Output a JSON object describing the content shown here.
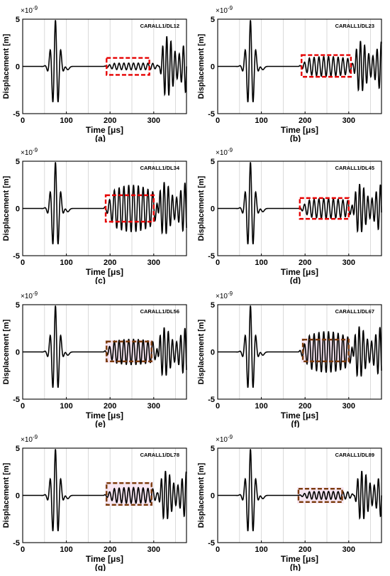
{
  "chart_data": [
    {
      "type": "line",
      "panel_label": "(a)",
      "annotation": "CARALL1/DL12",
      "xlabel": "Time [μs]",
      "ylabel": "Displacement [m]",
      "exponent_base": "×10",
      "exponent_power": "-9",
      "xlim": [
        0,
        375
      ],
      "ylim": [
        -5,
        5
      ],
      "xticks": [
        0,
        100,
        200,
        300
      ],
      "yticks": [
        -5,
        0,
        5
      ],
      "highlight": {
        "x": [
          192,
          290
        ],
        "y": [
          -0.9,
          0.9
        ],
        "style": "red"
      },
      "wave": {
        "burst1_amp": 4.9,
        "mid_amp": 0.3,
        "mid_growth": 0.2,
        "late_start": 318,
        "late_amp": 3.2
      }
    },
    {
      "type": "line",
      "panel_label": "(b)",
      "annotation": "CARALL1/DL23",
      "xlabel": "Time [μs]",
      "ylabel": "Displacement [m]",
      "exponent_base": "×10",
      "exponent_power": "-9",
      "xlim": [
        0,
        375
      ],
      "ylim": [
        -5,
        5
      ],
      "xticks": [
        0,
        100,
        200,
        300
      ],
      "yticks": [
        -5,
        0,
        5
      ],
      "highlight": {
        "x": [
          192,
          305
        ],
        "y": [
          -1.1,
          1.2
        ],
        "style": "red"
      },
      "wave": {
        "burst1_amp": 4.9,
        "mid_amp": 0.7,
        "mid_growth": 0.5,
        "late_start": 315,
        "late_amp": 2.7
      }
    },
    {
      "type": "line",
      "panel_label": "(c)",
      "annotation": "CARALL1/DL34",
      "xlabel": "Time [μs]",
      "ylabel": "Displacement [m]",
      "exponent_base": "×10",
      "exponent_power": "-9",
      "xlim": [
        0,
        375
      ],
      "ylim": [
        -5,
        5
      ],
      "xticks": [
        0,
        100,
        200,
        300
      ],
      "yticks": [
        -5,
        0,
        5
      ],
      "highlight": {
        "x": [
          190,
          300
        ],
        "y": [
          -1.4,
          1.4
        ],
        "style": "red"
      },
      "wave": {
        "burst1_amp": 4.9,
        "mid_amp": 1.3,
        "mid_growth": 0.9,
        "late_start": 312,
        "late_amp": 2.8
      }
    },
    {
      "type": "line",
      "panel_label": "(d)",
      "annotation": "CARALL1/DL45",
      "xlabel": "Time [μs]",
      "ylabel": "Displacement [m]",
      "exponent_base": "×10",
      "exponent_power": "-9",
      "xlim": [
        0,
        375
      ],
      "ylim": [
        -5,
        5
      ],
      "xticks": [
        0,
        100,
        200,
        300
      ],
      "yticks": [
        -5,
        0,
        5
      ],
      "highlight": {
        "x": [
          188,
          300
        ],
        "y": [
          -1.1,
          1.1
        ],
        "style": "red"
      },
      "wave": {
        "burst1_amp": 4.9,
        "mid_amp": 0.7,
        "mid_growth": 0.5,
        "late_start": 313,
        "late_amp": 2.6
      }
    },
    {
      "type": "line",
      "panel_label": "(e)",
      "annotation": "CARALL1/DL56",
      "xlabel": "Time [μs]",
      "ylabel": "Displacement [m]",
      "exponent_base": "×10",
      "exponent_power": "-9",
      "xlim": [
        0,
        375
      ],
      "ylim": [
        -5,
        5
      ],
      "xticks": [
        0,
        100,
        200,
        300
      ],
      "yticks": [
        -5,
        0,
        5
      ],
      "highlight": {
        "x": [
          192,
          295
        ],
        "y": [
          -1.0,
          1.1
        ],
        "style": "brown"
      },
      "wave": {
        "burst1_amp": 4.9,
        "mid_amp": 0.9,
        "mid_growth": 0.5,
        "late_start": 312,
        "late_amp": 2.6
      }
    },
    {
      "type": "line",
      "panel_label": "(f)",
      "annotation": "CARALL1/DL67",
      "xlabel": "Time [μs]",
      "ylabel": "Displacement [m]",
      "exponent_base": "×10",
      "exponent_power": "-9",
      "xlim": [
        0,
        375
      ],
      "ylim": [
        -5,
        5
      ],
      "xticks": [
        0,
        100,
        200,
        300
      ],
      "yticks": [
        -5,
        0,
        5
      ],
      "highlight": {
        "x": [
          195,
          300
        ],
        "y": [
          -1.0,
          1.3
        ],
        "style": "brown"
      },
      "wave": {
        "burst1_amp": 4.9,
        "mid_amp": 1.2,
        "mid_growth": 0.8,
        "late_start": 312,
        "late_amp": 2.7
      }
    },
    {
      "type": "line",
      "panel_label": "(g)",
      "annotation": "CARALL1/DL78",
      "xlabel": "Time [μs]",
      "ylabel": "Displacement [m]",
      "exponent_base": "×10",
      "exponent_power": "-9",
      "xlim": [
        0,
        375
      ],
      "ylim": [
        -5,
        5
      ],
      "xticks": [
        0,
        100,
        200,
        300
      ],
      "yticks": [
        -5,
        0,
        5
      ],
      "highlight": {
        "x": [
          192,
          295
        ],
        "y": [
          -1.0,
          1.3
        ],
        "style": "brown"
      },
      "wave": {
        "burst1_amp": 4.9,
        "mid_amp": 0.6,
        "mid_growth": 0.4,
        "late_start": 315,
        "late_amp": 2.6
      }
    },
    {
      "type": "line",
      "panel_label": "(h)",
      "annotation": "CARALL1/DL89",
      "xlabel": "Time [μs]",
      "ylabel": "Displacement [m]",
      "exponent_base": "×10",
      "exponent_power": "-9",
      "xlim": [
        0,
        375
      ],
      "ylim": [
        -5,
        5
      ],
      "xticks": [
        0,
        100,
        200,
        300
      ],
      "yticks": [
        -5,
        0,
        5
      ],
      "highlight": {
        "x": [
          185,
          285
        ],
        "y": [
          -0.7,
          0.7
        ],
        "style": "brown"
      },
      "wave": {
        "burst1_amp": 4.9,
        "mid_amp": 0.35,
        "mid_growth": 0.2,
        "late_start": 318,
        "late_amp": 2.6
      }
    }
  ],
  "colors": {
    "signal": "#000000",
    "grid": "#d0d0d0",
    "red_box": "#e60000",
    "brown_box": "#7a3a0a",
    "brown_fill": "#f7e6f2",
    "axis": "#000000"
  }
}
